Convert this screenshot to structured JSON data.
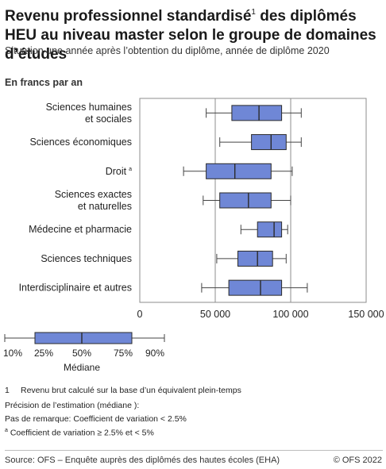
{
  "title": {
    "main": "Revenu professionnel standardisé",
    "note_marker": "1",
    "rest": " des diplômés HEU au niveau master selon le groupe de domaines d’études"
  },
  "subtitle": "Situation une année après l’obtention du diplôme, année de diplôme 2020",
  "unit_label": "En francs par an",
  "chart_data": {
    "type": "boxplot",
    "orientation": "horizontal",
    "categories": [
      "Sciences humaines et sociales",
      "Sciences économiques",
      "Droit",
      "Sciences exactes et naturelles",
      "Médecine et pharmacie",
      "Sciences techniques",
      "Interdisciplinaire et autres"
    ],
    "category_lines": [
      [
        "Sciences humaines",
        "et sociales"
      ],
      [
        "Sciences économiques"
      ],
      [
        "Droit"
      ],
      [
        "Sciences exactes",
        "et naturelles"
      ],
      [
        "Médecine et pharmacie"
      ],
      [
        "Sciences techniques"
      ],
      [
        "Interdisciplinaire et autres"
      ]
    ],
    "category_notes": [
      "",
      "",
      "a",
      "",
      "",
      "",
      ""
    ],
    "series": [
      {
        "p10": 44000,
        "p25": 61000,
        "median": 79000,
        "p75": 94000,
        "p90": 107000
      },
      {
        "p10": 53000,
        "p25": 74000,
        "median": 87000,
        "p75": 97000,
        "p90": 107000
      },
      {
        "p10": 29000,
        "p25": 44000,
        "median": 63000,
        "p75": 87000,
        "p90": 101000
      },
      {
        "p10": 42000,
        "p25": 53000,
        "median": 72000,
        "p75": 87000,
        "p90": 100000
      },
      {
        "p10": 67000,
        "p25": 78000,
        "median": 89000,
        "p75": 94000,
        "p90": 98000
      },
      {
        "p10": 51000,
        "p25": 65000,
        "median": 78000,
        "p75": 88000,
        "p90": 97000
      },
      {
        "p10": 41000,
        "p25": 59000,
        "median": 80000,
        "p75": 94000,
        "p90": 111000
      }
    ],
    "xlim": [
      0,
      150000
    ],
    "xticks": [
      0,
      50000,
      100000,
      150000
    ],
    "xtick_labels": [
      "0",
      "50 000",
      "100 000",
      "150 000"
    ],
    "grid": true,
    "colors": {
      "box": "#6f87d6",
      "box_edge": "#2b2b2b",
      "grid": "#8c8c8c"
    }
  },
  "legend": {
    "labels": [
      "10%",
      "25%",
      "50%",
      "75%",
      "90%"
    ],
    "median_label": "Médiane"
  },
  "footnotes": {
    "note1_marker": "1",
    "note1_text": "Revenu brut calculé sur la base d’un équivalent plein-temps",
    "precision_title": "Précision de l’estimation (médiane ):",
    "precision_none": "Pas de remarque: Coefficient de variation < 2.5%",
    "precision_a_marker": "a",
    "precision_a_text": " Coefficient de variation ≥ 2.5% et < 5%"
  },
  "source": "Source: OFS – Enquête auprès des diplômés des hautes écoles (EHA)",
  "copyright": "© OFS 2022"
}
